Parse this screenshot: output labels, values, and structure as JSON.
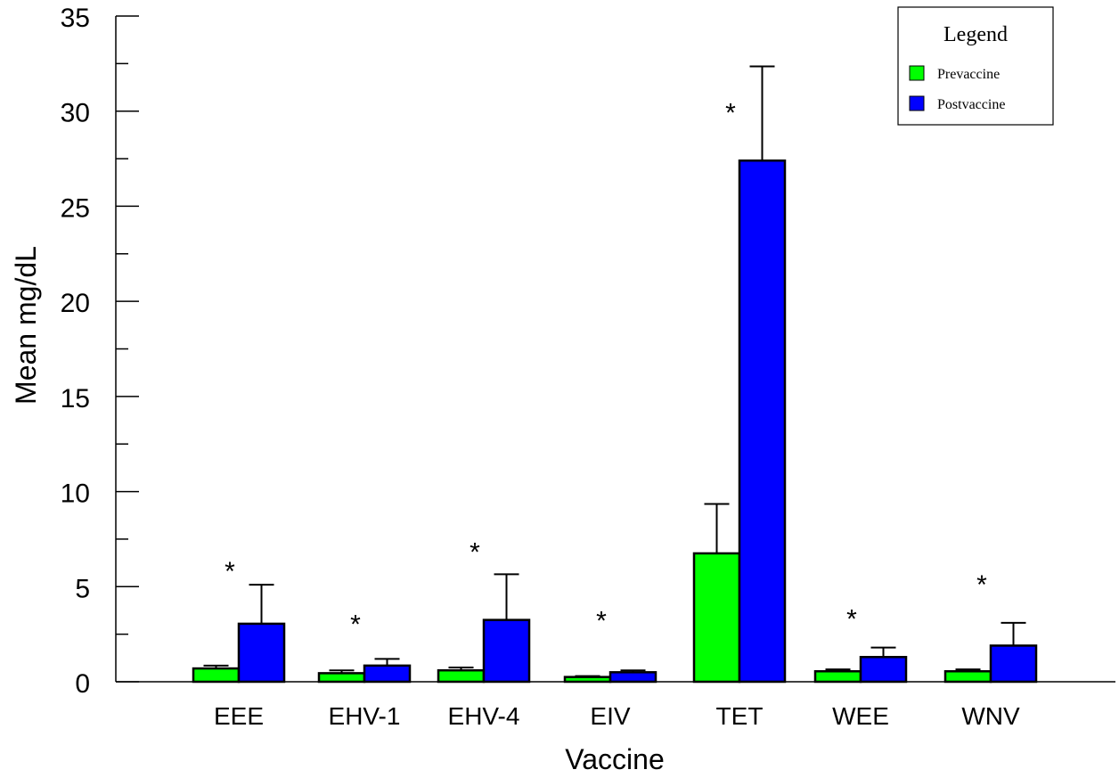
{
  "chart_data": {
    "type": "bar",
    "title": "",
    "xlabel": "Vaccine",
    "ylabel": "Mean mg/dL",
    "ylim": [
      0,
      35
    ],
    "yticks": [
      0,
      5,
      10,
      15,
      20,
      25,
      30,
      35
    ],
    "categories": [
      "EEE",
      "EHV-1",
      "EHV-4",
      "EIV",
      "TET",
      "WEE",
      "WNV"
    ],
    "series": [
      {
        "name": "Prevaccine",
        "color": "#00ff00",
        "values": [
          0.7,
          0.45,
          0.6,
          0.25,
          6.75,
          0.55,
          0.55
        ],
        "errors": [
          0.15,
          0.15,
          0.15,
          0.05,
          2.6,
          0.1,
          0.1
        ]
      },
      {
        "name": "Postvaccine",
        "color": "#0000ff",
        "values": [
          3.05,
          0.85,
          3.25,
          0.5,
          27.4,
          1.3,
          1.9
        ],
        "errors": [
          2.05,
          0.35,
          2.4,
          0.1,
          4.95,
          0.5,
          1.2
        ]
      }
    ],
    "significance": [
      "*",
      "*",
      "*",
      "*",
      "*",
      "*",
      "*"
    ],
    "significance_y": [
      6.0,
      3.2,
      7.0,
      3.4,
      30.1,
      3.5,
      5.3
    ],
    "legend": {
      "title": "Legend",
      "placement": "top-right"
    },
    "grid": false
  }
}
